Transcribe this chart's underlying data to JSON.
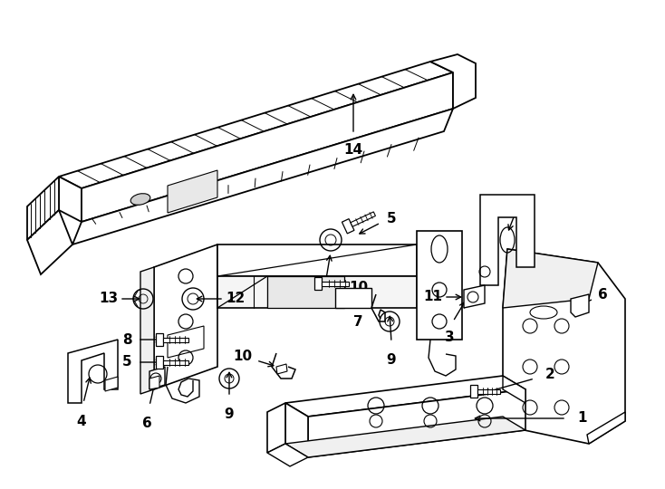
{
  "bg_color": "#ffffff",
  "line_color": "#000000",
  "figsize": [
    7.34,
    5.4
  ],
  "dpi": 100,
  "lw_main": 1.3,
  "lw_thin": 0.8,
  "lw_hair": 0.5,
  "label_fontsize": 11,
  "parts": "rear_bumper_1991_ford_f150"
}
